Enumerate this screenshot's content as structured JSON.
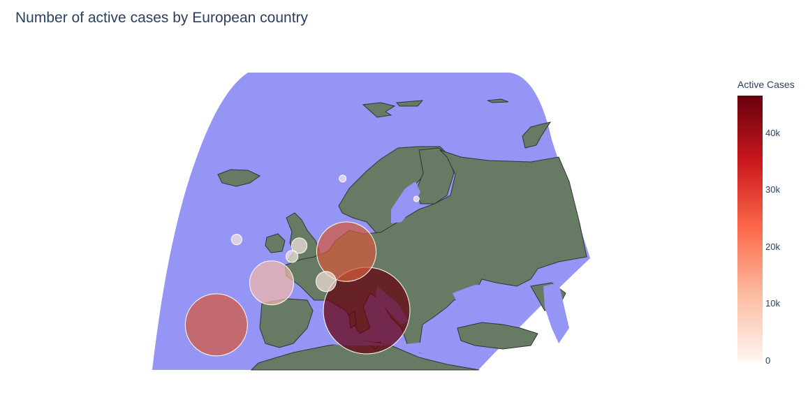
{
  "title": "Number of active cases by European country",
  "colorbar": {
    "title": "Active Cases",
    "ticks": [
      "0",
      "10k",
      "20k",
      "30k",
      "40k"
    ],
    "max": 46600,
    "colors": [
      "#fff5f0",
      "#fcbba1",
      "#fb6a4a",
      "#cb181d",
      "#67000d"
    ]
  },
  "map": {
    "ocean_color": "#9595f5",
    "land_color": "#677a63",
    "border_color": "#333333"
  },
  "chart_data": {
    "type": "scatter_geo",
    "title": "Number of active cases by European country",
    "color_label": "Active Cases",
    "points": [
      {
        "lon": 12.6,
        "lat": 42.5,
        "value": 46600,
        "color": "#67000d"
      },
      {
        "lon": 10.4,
        "lat": 51.2,
        "value": 22000,
        "color": "#d45a3c"
      },
      {
        "lon": -3.7,
        "lat": 40.4,
        "value": 24000,
        "color": "#d45a3c"
      },
      {
        "lon": 2.3,
        "lat": 46.6,
        "value": 12000,
        "color": "#f2b9a9"
      },
      {
        "lon": 8.2,
        "lat": 46.8,
        "value": 2500,
        "color": "#f3dfd8"
      },
      {
        "lon": 5.3,
        "lat": 52.1,
        "value": 1500,
        "color": "#f4e6e0"
      },
      {
        "lon": -1.5,
        "lat": 53.0,
        "value": 700,
        "color": "#f4e6e0"
      },
      {
        "lon": 4.5,
        "lat": 50.5,
        "value": 900,
        "color": "#f4e6e0"
      },
      {
        "lon": 10.0,
        "lat": 62.0,
        "value": 300,
        "color": "#f6ecea"
      },
      {
        "lon": 18.0,
        "lat": 59.0,
        "value": 150,
        "color": "#f6ecea"
      }
    ]
  }
}
